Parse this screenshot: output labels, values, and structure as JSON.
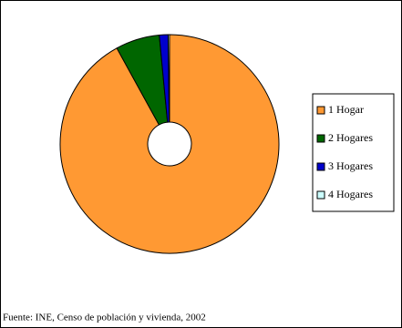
{
  "chart_data": {
    "type": "donut",
    "categories": [
      "1 Hogar",
      "2 Hogares",
      "3 Hogares",
      "4 Hogares"
    ],
    "values": [
      92,
      6.5,
      1.3,
      0.2
    ],
    "colors": [
      "#ff9933",
      "#006600",
      "#0000cc",
      "#ccffff"
    ],
    "source": "Fuente: INE, Censo de población y vivienda, 2002",
    "legend": "right"
  }
}
